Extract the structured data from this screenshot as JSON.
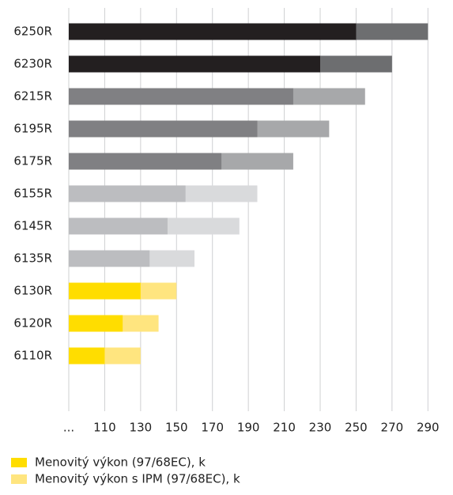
{
  "chart_data": {
    "type": "bar",
    "orientation": "horizontal",
    "overlay": true,
    "grid": true,
    "categories": [
      "6250R",
      "6230R",
      "6215R",
      "6195R",
      "6175R",
      "6155R",
      "6145R",
      "6135R",
      "6130R",
      "6120R",
      "6110R"
    ],
    "series": [
      {
        "name": "Menovitý výkon s IPM (97/68EC), k",
        "color": "#ffe57f",
        "colors": [
          "#6d6e70",
          "#6d6e70",
          "#a7a8aa",
          "#a7a8aa",
          "#a7a8aa",
          "#d9dadc",
          "#d9dadc",
          "#d9dadc",
          "#ffe57f",
          "#ffe57f",
          "#ffe57f"
        ],
        "values": [
          290,
          270,
          255,
          235,
          215,
          195,
          185,
          160,
          150,
          140,
          130
        ]
      },
      {
        "name": "Menovitý výkon (97/68EC), k",
        "color": "#ffdd00",
        "colors": [
          "#231f20",
          "#231f20",
          "#808083",
          "#808083",
          "#808083",
          "#bcbdc0",
          "#bcbdc0",
          "#bcbdc0",
          "#ffdd00",
          "#ffdd00",
          "#ffdd00"
        ],
        "values": [
          250,
          230,
          215,
          195,
          175,
          155,
          145,
          135,
          130,
          120,
          110
        ]
      }
    ],
    "xlim": [
      90,
      300
    ],
    "xticks": [
      {
        "value": 90,
        "label": "..."
      },
      110,
      130,
      150,
      170,
      190,
      210,
      230,
      250,
      270,
      290
    ]
  }
}
